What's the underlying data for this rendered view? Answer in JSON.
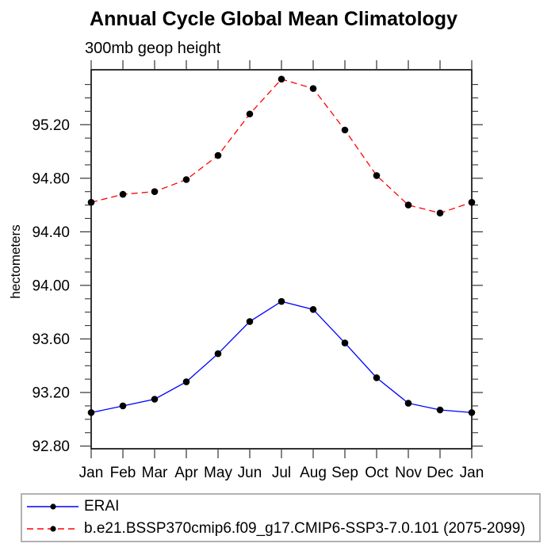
{
  "chart_data": {
    "type": "line",
    "title": "Annual Cycle Global Mean Climatology",
    "subtitle": "300mb geop height",
    "ylabel": "hectometers",
    "categories": [
      "Jan",
      "Feb",
      "Mar",
      "Apr",
      "May",
      "Jun",
      "Jul",
      "Aug",
      "Sep",
      "Oct",
      "Nov",
      "Dec",
      "Jan"
    ],
    "series": [
      {
        "name": "ERAI",
        "color": "#0000ff",
        "line_style": "solid",
        "marker": "filled-circle",
        "marker_color": "#000000",
        "values": [
          93.05,
          93.1,
          93.15,
          93.28,
          93.49,
          93.73,
          93.88,
          93.82,
          93.57,
          93.31,
          93.12,
          93.07,
          93.05
        ]
      },
      {
        "name": "b.e21.BSSP370cmip6.f09_g17.CMIP6-SSP3-7.0.101 (2075-2099)",
        "color": "#ff0000",
        "line_style": "dashed",
        "marker": "filled-circle",
        "marker_color": "#000000",
        "values": [
          94.62,
          94.68,
          94.7,
          94.79,
          94.97,
          95.28,
          95.54,
          95.47,
          95.16,
          94.82,
          94.6,
          94.54,
          94.62
        ]
      }
    ],
    "ylim": [
      92.78,
      95.61
    ],
    "yticks_major": [
      92.8,
      93.2,
      93.6,
      94.0,
      94.4,
      94.8,
      95.2
    ],
    "ytick_minor_step": 0.1,
    "grid": false,
    "frame": true,
    "legend_position": "bottom"
  }
}
